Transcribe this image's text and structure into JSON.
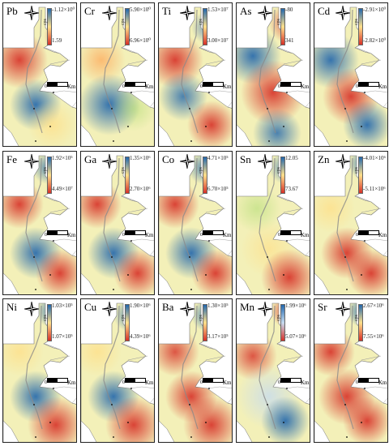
{
  "panels": [
    {
      "element": "Pb",
      "legend_max": "-1.12×10⁰",
      "legend_min": "1.59",
      "cbar": [
        "#2166ac",
        "#fee08b",
        "#d73027"
      ]
    },
    {
      "element": "Cr",
      "legend_max": "5.90×10⁰",
      "legend_min": "6.96×10⁰",
      "cbar": [
        "#2166ac",
        "#fee08b",
        "#d73027"
      ]
    },
    {
      "element": "Ti",
      "legend_max": "1.53×10⁷",
      "legend_min": "3.00×10⁷",
      "cbar": [
        "#2166ac",
        "#fee08b",
        "#d73027"
      ]
    },
    {
      "element": "As",
      "legend_max": "-80",
      "legend_min": "341",
      "cbar": [
        "#2166ac",
        "#fee08b",
        "#d73027"
      ]
    },
    {
      "element": "Cd",
      "legend_max": "-2.91×10⁰",
      "legend_min": "-2.82×10⁰",
      "cbar": [
        "#2166ac",
        "#fee08b",
        "#d73027"
      ]
    },
    {
      "element": "Fe",
      "legend_max": "1.92×10⁵",
      "legend_min": "4.49×10⁷",
      "cbar": [
        "#2166ac",
        "#fee08b",
        "#d73027"
      ]
    },
    {
      "element": "Ga",
      "legend_max": "1.35×10⁶",
      "legend_min": "2.70×10⁶",
      "cbar": [
        "#2166ac",
        "#fee08b",
        "#d73027"
      ]
    },
    {
      "element": "Co",
      "legend_max": "4.71×10⁵",
      "legend_min": "6.70×10⁵",
      "cbar": [
        "#2166ac",
        "#fee08b",
        "#d73027"
      ]
    },
    {
      "element": "Sn",
      "legend_max": "12.05",
      "legend_min": "73.67",
      "cbar": [
        "#2166ac",
        "#fee08b",
        "#d73027"
      ]
    },
    {
      "element": "Zn",
      "legend_max": "-4.01×10⁶",
      "legend_min": "-5.11×10⁶",
      "cbar": [
        "#2166ac",
        "#fee08b",
        "#d73027"
      ]
    },
    {
      "element": "Ni",
      "legend_max": "1.03×10⁵",
      "legend_min": "1.07×10⁵",
      "cbar": [
        "#2166ac",
        "#fee08b",
        "#d73027"
      ]
    },
    {
      "element": "Cu",
      "legend_max": "1.90×10⁶",
      "legend_min": "4.39×10⁶",
      "cbar": [
        "#2166ac",
        "#fee08b",
        "#d73027"
      ]
    },
    {
      "element": "Ba",
      "legend_max": "1.30×10⁵",
      "legend_min": "3.17×10⁵",
      "cbar": [
        "#2166ac",
        "#fee08b",
        "#d73027"
      ]
    },
    {
      "element": "Mn",
      "legend_max": "1.99×10⁶",
      "legend_min": "5.07×10⁶",
      "cbar": [
        "#2166ac",
        "#c6dbef",
        "#d73027"
      ]
    },
    {
      "element": "Sr",
      "legend_max": "2.67×10⁶",
      "legend_min": "7.55×10⁶",
      "cbar": [
        "#2166ac",
        "#fee08b",
        "#d73027"
      ]
    }
  ],
  "legend_unit": "cps",
  "scale_zero": "0",
  "scale_unit": "Km",
  "colors": {
    "high": "#d73027",
    "mid": "#fee08b",
    "low": "#2166ac",
    "line": "#8a8a8a"
  }
}
